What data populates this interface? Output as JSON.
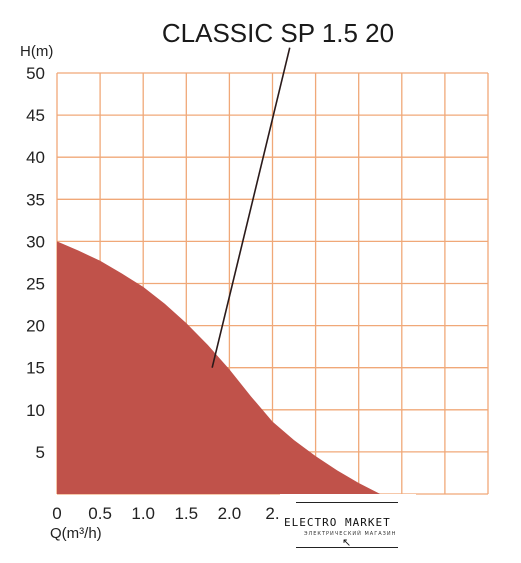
{
  "chart_data": {
    "type": "area",
    "title": "CLASSIC SP 1.5 20",
    "xlabel": "Q(m³/h)",
    "ylabel": "H(m)",
    "xlim": [
      0,
      5
    ],
    "ylim": [
      0,
      50
    ],
    "x_tick_labels": [
      "0",
      "0.5",
      "1.0",
      "1.5",
      "2.0",
      "2."
    ],
    "y_tick_labels": [
      "5",
      "10",
      "15",
      "20",
      "25",
      "30",
      "35",
      "40",
      "45",
      "50"
    ],
    "grid": true,
    "series": [
      {
        "x": [
          0,
          0.25,
          0.5,
          0.75,
          1.0,
          1.25,
          1.5,
          1.75,
          2.0,
          2.25,
          2.5,
          2.75,
          3.0,
          3.25,
          3.5,
          3.75
        ],
        "y": [
          30,
          28.9,
          27.7,
          26.2,
          24.6,
          22.6,
          20.3,
          17.7,
          14.8,
          11.6,
          8.6,
          6.4,
          4.5,
          2.8,
          1.3,
          0
        ],
        "color": "#c0524a"
      }
    ],
    "annotations": [
      {
        "type": "leader-line",
        "from": [
          1.8,
          15
        ],
        "to": [
          2.7,
          53
        ]
      }
    ]
  },
  "watermark": {
    "brand": "ELECTRO MARKET",
    "tagline": "ЭЛЕКТРИЧЕСКИЙ МАГАЗИН"
  },
  "colors": {
    "grid": "#f0a878",
    "fill": "#c0524a",
    "axis": "#f0a878"
  }
}
